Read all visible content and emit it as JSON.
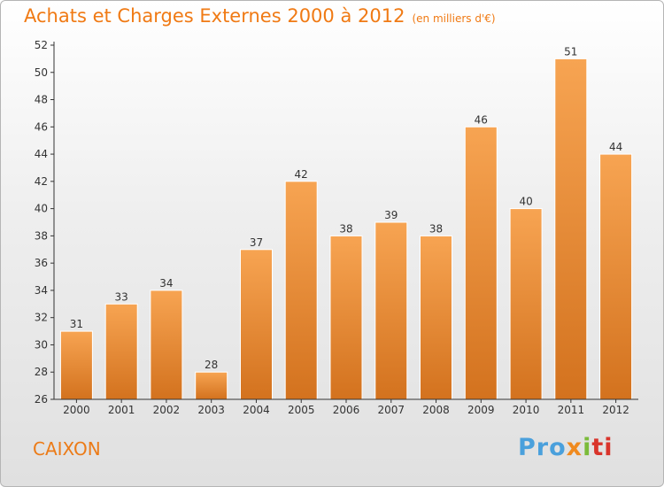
{
  "title": "Achats et Charges Externes 2000 à 2012",
  "unit": "(en milliers d'€)",
  "commune": "CAIXON",
  "brand": [
    "Pro",
    "x",
    "i",
    "ti"
  ],
  "colors": {
    "bar_light": "#f7a452",
    "bar_dark": "#d3721e",
    "accent": "#f07a14",
    "axis": "#333333"
  },
  "chart_data": {
    "type": "bar",
    "title": "Achats et Charges Externes 2000 à 2012",
    "subtitle": "(en milliers d'€)",
    "xlabel": "",
    "ylabel": "",
    "categories": [
      "2000",
      "2001",
      "2002",
      "2003",
      "2004",
      "2005",
      "2006",
      "2007",
      "2008",
      "2009",
      "2010",
      "2011",
      "2012"
    ],
    "values": [
      31,
      33,
      34,
      28,
      37,
      42,
      38,
      39,
      38,
      46,
      40,
      51,
      44
    ],
    "ylim": [
      26,
      52
    ],
    "yticks": [
      26,
      28,
      30,
      32,
      34,
      36,
      38,
      40,
      42,
      44,
      46,
      48,
      50,
      52
    ],
    "grid": false,
    "data_labels": true
  }
}
